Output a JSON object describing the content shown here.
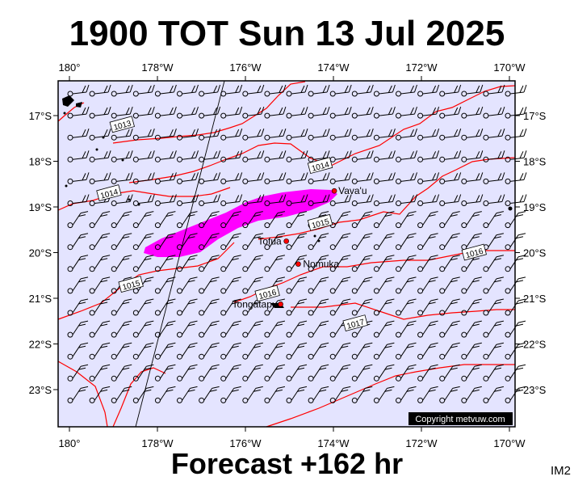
{
  "title": "1900 TOT Sun 13 Jul 2025",
  "footer": "Forecast +162 hr",
  "tag": "IM2",
  "copyright": "Copyright metvuw.com",
  "x_ticks": [
    "180°",
    "178°W",
    "176°W",
    "174°W",
    "172°W",
    "170°W"
  ],
  "y_ticks": [
    "17°S",
    "18°S",
    "19°S",
    "20°S",
    "21°S",
    "22°S",
    "23°S"
  ],
  "places": [
    {
      "name": "Vava'u",
      "lon": -173.98,
      "lat": -18.65
    },
    {
      "name": "Tofua",
      "lon": -175.07,
      "lat": -19.75
    },
    {
      "name": "Nomuka",
      "lon": -174.8,
      "lat": -20.25
    },
    {
      "name": "Tongatapu",
      "lon": -175.2,
      "lat": -21.13
    }
  ],
  "isobars": [
    {
      "label": "1013",
      "lx": -178.8,
      "ly": -17.2
    },
    {
      "label": "1014",
      "lx": -174.3,
      "ly": -18.1
    },
    {
      "label": "1014",
      "lx": -179.1,
      "ly": -18.7
    },
    {
      "label": "1015",
      "lx": -174.3,
      "ly": -19.35
    },
    {
      "label": "1015",
      "lx": -178.6,
      "ly": -20.7
    },
    {
      "label": "1016",
      "lx": -170.8,
      "ly": -20.0
    },
    {
      "label": "1016",
      "lx": -175.5,
      "ly": -20.9
    },
    {
      "label": "1017",
      "lx": -173.5,
      "ly": -21.55
    }
  ],
  "colors": {
    "ocean": "#e4e4ff",
    "isobar": "#ff0000",
    "rain": "#ff00ff",
    "land": "#000000"
  }
}
